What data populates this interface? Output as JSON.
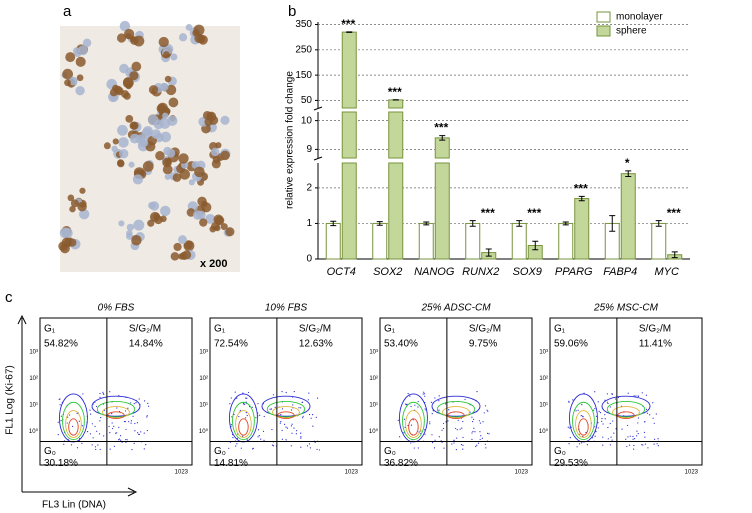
{
  "panels": {
    "a": "a",
    "b": "b",
    "c": "c"
  },
  "image": {
    "magnification": "x 200"
  },
  "chart_data": {
    "type": "bar",
    "y_label": "relative  expression fold change",
    "categories": [
      "OCT4",
      "SOX2",
      "NANOG",
      "RUNX2",
      "SOX9",
      "PPARG",
      "FABP4",
      "MYC"
    ],
    "series": [
      {
        "name": "monolayer",
        "color": "#ffffff",
        "edge": "#77933c",
        "values": [
          1.0,
          1.0,
          1.0,
          1.0,
          1.0,
          1.0,
          1.0,
          1.0
        ],
        "errors": [
          0.06,
          0.05,
          0.04,
          0.08,
          0.08,
          0.04,
          0.22,
          0.08
        ]
      },
      {
        "name": "sphere",
        "color": "#c4d79b",
        "edge": "#77933c",
        "values": [
          320,
          52,
          9.4,
          0.18,
          0.38,
          1.7,
          2.4,
          0.12
        ],
        "errors": [
          1.2,
          0.6,
          0.08,
          0.1,
          0.12,
          0.06,
          0.08,
          0.08
        ]
      }
    ],
    "significance": [
      "***",
      "***",
      "***",
      "***",
      "***",
      "***",
      "*",
      "***"
    ],
    "axis_segments": [
      {
        "ylim": [
          0,
          2.7
        ],
        "yticks": [
          0,
          1,
          2
        ]
      },
      {
        "ylim": [
          8.7,
          10.3
        ],
        "yticks": [
          9,
          10
        ]
      },
      {
        "ylim": [
          20,
          360
        ],
        "yticks": [
          50,
          150,
          250,
          350
        ]
      }
    ],
    "grid": true,
    "legend": "upper right"
  },
  "flow": {
    "y_label": "FL1 Log (Ki-67)",
    "x_label": "FL3 Lin (DNA)",
    "y_ticks": [
      "10⁰",
      "10¹",
      "10²",
      "10³"
    ],
    "x_max_label": "1023",
    "phase_labels": {
      "g1": "G₁",
      "sgm": "S/G₂/M",
      "g0": "G₀"
    },
    "plots": [
      {
        "title": "0% FBS",
        "g1_pct": "54.82%",
        "sgm_pct": "14.84%",
        "g0_pct": "30.18%"
      },
      {
        "title": "10% FBS",
        "g1_pct": "72.54%",
        "sgm_pct": "12.63%",
        "g0_pct": "14.81%"
      },
      {
        "title": "25% ADSC-CM",
        "g1_pct": "53.40%",
        "sgm_pct": "9.75%",
        "g0_pct": "36.82%"
      },
      {
        "title": "25% MSC-CM",
        "g1_pct": "59.06%",
        "sgm_pct": "11.41%",
        "g0_pct": "29.53%"
      }
    ]
  }
}
